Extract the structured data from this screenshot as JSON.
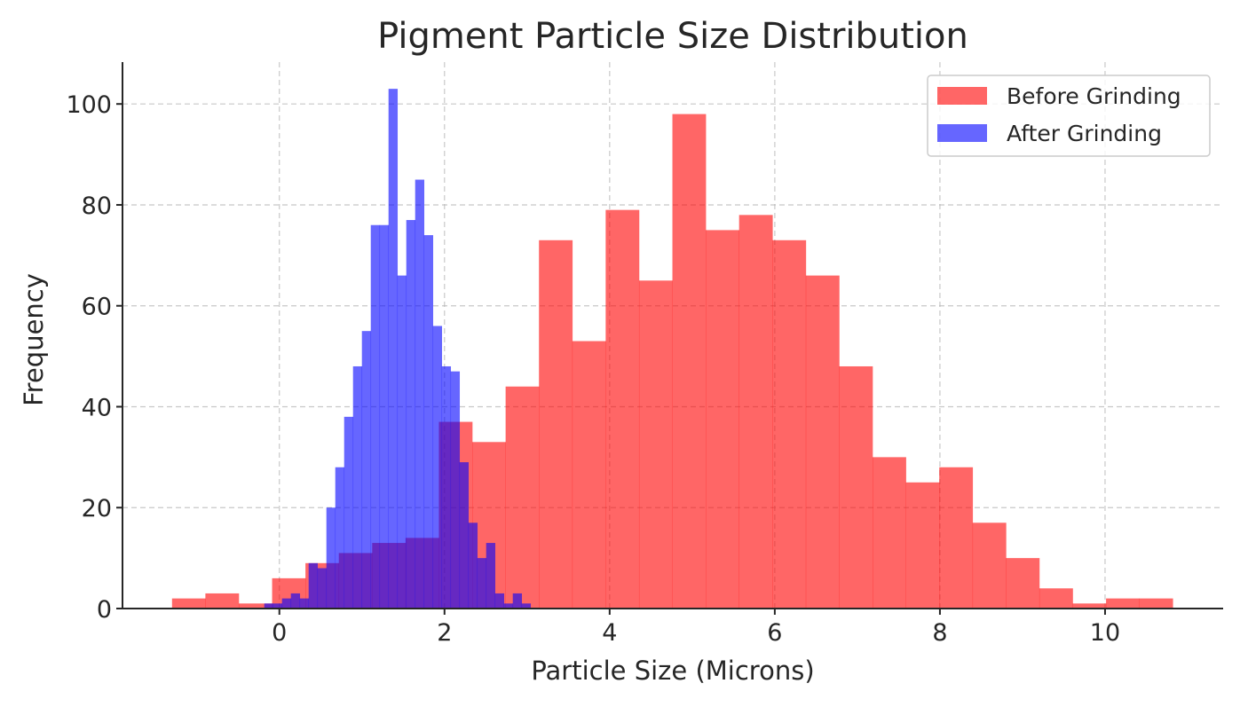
{
  "chart_data": {
    "type": "histogram",
    "title": "Pigment Particle Size Distribution",
    "xlabel": "Particle Size (Microns)",
    "ylabel": "Frequency",
    "xlim": [
      -1.9,
      11.43
    ],
    "ylim": [
      0,
      108.3
    ],
    "xticks": [
      0,
      2,
      4,
      6,
      8,
      10
    ],
    "yticks": [
      0,
      20,
      40,
      60,
      80,
      100
    ],
    "grid": true,
    "legend_position": "top-right",
    "series": [
      {
        "name": "Before Grinding",
        "color": "#ff0000",
        "alpha": 0.6,
        "bin_start": -1.3,
        "bin_width": 0.404,
        "counts": [
          2,
          3,
          1,
          6,
          9,
          11,
          13,
          14,
          37,
          33,
          44,
          73,
          53,
          79,
          65,
          98,
          75,
          78,
          73,
          66,
          48,
          30,
          25,
          28,
          17,
          10,
          4,
          1,
          2,
          2
        ]
      },
      {
        "name": "After Grinding",
        "color": "#0000ff",
        "alpha": 0.6,
        "bin_start": -0.183,
        "bin_width": 0.1075,
        "counts": [
          1,
          1,
          2,
          3,
          2,
          9,
          8,
          20,
          28,
          38,
          48,
          55,
          76,
          76,
          103,
          66,
          77,
          85,
          74,
          56,
          48,
          47,
          29,
          17,
          10,
          13,
          3,
          1,
          3,
          1
        ]
      }
    ]
  }
}
